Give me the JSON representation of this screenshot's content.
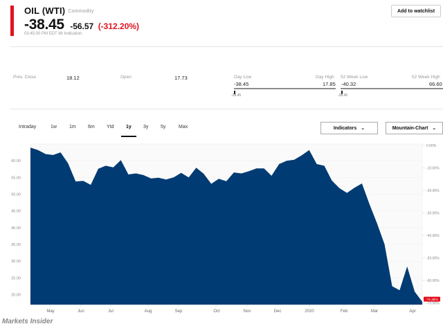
{
  "header": {
    "name": "OIL (WTI)",
    "type": "Commodity",
    "price": "-38.45",
    "change": "-56.57",
    "change_pct": "(-312.20%)",
    "timestamp": "03:45:00 PM EDT MI Indication",
    "watchlist_button": "Add to watchlist",
    "accent_color": "#e2121f"
  },
  "stats": {
    "prev_close_label": "Prev. Close",
    "prev_close": "18.12",
    "open_label": "Open",
    "open": "17.73",
    "day_low_label": "Day Low",
    "day_high_label": "Day High",
    "day_low": "-38.45",
    "day_high": "17.85",
    "day_marker": "-38.45",
    "week52_low_label": "52 Week Low",
    "week52_high_label": "52 Week High",
    "week52_low": "-40.32",
    "week52_high": "66.60",
    "week52_marker": "-38.45"
  },
  "tabs": [
    {
      "label": "Intraday"
    },
    {
      "label": "1w"
    },
    {
      "label": "1m"
    },
    {
      "label": "6m"
    },
    {
      "label": "Ytd"
    },
    {
      "label": "1y"
    },
    {
      "label": "3y"
    },
    {
      "label": "5y"
    },
    {
      "label": "Max"
    }
  ],
  "active_tab": "1y",
  "controls": {
    "indicators": "Indicators",
    "chart_type": "Mountain-Chart"
  },
  "chart_data": {
    "type": "area",
    "fill_color": "#003b73",
    "y_ticks_left": [
      "60.00",
      "55.00",
      "50.00",
      "45.00",
      "40.00",
      "35.00",
      "30.00",
      "25.00",
      "20.00"
    ],
    "y_ticks_right": [
      "0.00%",
      "-10.00%",
      "-20.00%",
      "-30.00%",
      "-40.00%",
      "-50.00%",
      "-60.00%",
      "-70.00%"
    ],
    "x_ticks": [
      "May",
      "Jun",
      "Jul",
      "Aug",
      "Sep",
      "Oct",
      "Nov",
      "Dec",
      "2020",
      "Feb",
      "Mar",
      "Apr"
    ],
    "current_badge": "-71.45%",
    "ylim": [
      17,
      65
    ],
    "values": [
      63.9,
      63.2,
      62.0,
      61.7,
      62.5,
      59.2,
      53.8,
      54.0,
      52.8,
      57.6,
      58.5,
      58.0,
      60.2,
      55.9,
      56.2,
      55.7,
      54.7,
      54.9,
      54.4,
      55.0,
      56.4,
      55.0,
      57.9,
      56.1,
      53.1,
      54.6,
      53.9,
      56.5,
      56.2,
      56.9,
      57.7,
      57.7,
      55.5,
      59.0,
      60.0,
      60.3,
      61.6,
      63.2,
      59.0,
      58.5,
      54.1,
      51.8,
      50.4,
      51.9,
      53.2,
      47.0,
      41.3,
      35.0,
      22.5,
      21.3,
      28.4,
      20.9,
      17.9
    ]
  },
  "footer": {
    "brand": "Markets Insider"
  }
}
